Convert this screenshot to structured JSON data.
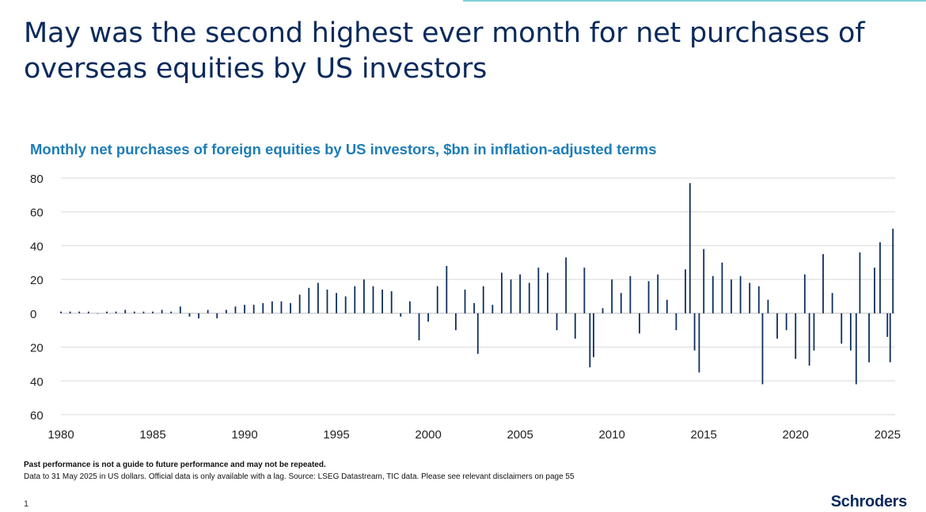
{
  "slide": {
    "title": "May was the second highest ever month for net purchases of overseas equities by US investors",
    "page_number": "1",
    "brand": "Schroders"
  },
  "footer": {
    "disclaimer": "Past performance is not a guide to future performance and may not be repeated.",
    "note": "Data to 31 May 2025 in US dollars. Official data is only available with a lag. Source: LSEG Datastream, TIC data. Please see relevant disclaimers on page 55"
  },
  "colors": {
    "title": "#0a2a5c",
    "chart_title": "#1d7db8",
    "bars": "#0d2f5e",
    "gridlines": "#d9d9d9",
    "top_rule": "#7fd0d8"
  },
  "chart_data": {
    "type": "bar",
    "title": "Monthly net purchases of foreign equities by US investors, $bn in inflation-adjusted terms",
    "xlabel": "",
    "ylabel": "",
    "xlim": [
      1980,
      2025.42
    ],
    "ylim": [
      -60,
      80
    ],
    "x_ticks": [
      "1980",
      "1985",
      "1990",
      "1995",
      "2000",
      "2005",
      "2010",
      "2015",
      "2020",
      "2025"
    ],
    "y_tick_values": [
      80,
      60,
      40,
      20,
      0,
      -20,
      -40,
      -60
    ],
    "y_tick_labels": [
      "80",
      "60",
      "40",
      "20",
      "0",
      "20",
      "40",
      "60"
    ],
    "grid": true,
    "series": [
      {
        "values": [
          [
            1980.0,
            1
          ],
          [
            1980.5,
            1
          ],
          [
            1981.0,
            1
          ],
          [
            1981.5,
            1
          ],
          [
            1982.0,
            0
          ],
          [
            1982.5,
            1
          ],
          [
            1983.0,
            1
          ],
          [
            1983.5,
            2
          ],
          [
            1984.0,
            1
          ],
          [
            1984.5,
            1
          ],
          [
            1985.0,
            1
          ],
          [
            1985.5,
            2
          ],
          [
            1986.0,
            1
          ],
          [
            1986.5,
            4
          ],
          [
            1987.0,
            -2
          ],
          [
            1987.5,
            -3
          ],
          [
            1988.0,
            2
          ],
          [
            1988.5,
            -3
          ],
          [
            1989.0,
            2
          ],
          [
            1989.5,
            4
          ],
          [
            1990.0,
            5
          ],
          [
            1990.5,
            5
          ],
          [
            1991.0,
            6
          ],
          [
            1991.5,
            7
          ],
          [
            1992.0,
            7
          ],
          [
            1992.5,
            6
          ],
          [
            1993.0,
            11
          ],
          [
            1993.5,
            15
          ],
          [
            1994.0,
            18
          ],
          [
            1994.5,
            14
          ],
          [
            1995.0,
            12
          ],
          [
            1995.5,
            10
          ],
          [
            1996.0,
            16
          ],
          [
            1996.5,
            20
          ],
          [
            1997.0,
            16
          ],
          [
            1997.5,
            14
          ],
          [
            1998.0,
            13
          ],
          [
            1998.5,
            -2
          ],
          [
            1999.0,
            7
          ],
          [
            1999.5,
            -16
          ],
          [
            2000.0,
            -5
          ],
          [
            2000.5,
            16
          ],
          [
            2001.0,
            28
          ],
          [
            2001.5,
            -10
          ],
          [
            2002.0,
            14
          ],
          [
            2002.5,
            6
          ],
          [
            2002.7,
            -24
          ],
          [
            2003.0,
            16
          ],
          [
            2003.5,
            5
          ],
          [
            2004.0,
            24
          ],
          [
            2004.5,
            20
          ],
          [
            2005.0,
            23
          ],
          [
            2005.5,
            18
          ],
          [
            2006.0,
            27
          ],
          [
            2006.5,
            24
          ],
          [
            2007.0,
            -10
          ],
          [
            2007.5,
            33
          ],
          [
            2008.0,
            -15
          ],
          [
            2008.5,
            27
          ],
          [
            2008.8,
            -32
          ],
          [
            2009.0,
            -26
          ],
          [
            2009.5,
            3
          ],
          [
            2010.0,
            20
          ],
          [
            2010.5,
            12
          ],
          [
            2011.0,
            22
          ],
          [
            2011.5,
            -12
          ],
          [
            2012.0,
            19
          ],
          [
            2012.5,
            23
          ],
          [
            2013.0,
            8
          ],
          [
            2013.5,
            -10
          ],
          [
            2014.0,
            26
          ],
          [
            2014.25,
            77
          ],
          [
            2014.5,
            -22
          ],
          [
            2014.75,
            -35
          ],
          [
            2015.0,
            38
          ],
          [
            2015.5,
            22
          ],
          [
            2016.0,
            30
          ],
          [
            2016.5,
            20
          ],
          [
            2017.0,
            22
          ],
          [
            2017.5,
            18
          ],
          [
            2018.0,
            16
          ],
          [
            2018.2,
            -42
          ],
          [
            2018.5,
            8
          ],
          [
            2019.0,
            -15
          ],
          [
            2019.5,
            -10
          ],
          [
            2020.0,
            -27
          ],
          [
            2020.5,
            23
          ],
          [
            2020.75,
            -31
          ],
          [
            2021.0,
            -22
          ],
          [
            2021.5,
            35
          ],
          [
            2022.0,
            12
          ],
          [
            2022.5,
            -18
          ],
          [
            2023.0,
            -22
          ],
          [
            2023.3,
            -42
          ],
          [
            2023.5,
            36
          ],
          [
            2024.0,
            -29
          ],
          [
            2024.3,
            27
          ],
          [
            2024.6,
            42
          ],
          [
            2025.0,
            -14
          ],
          [
            2025.15,
            -29
          ],
          [
            2025.3,
            50
          ]
        ]
      }
    ]
  }
}
